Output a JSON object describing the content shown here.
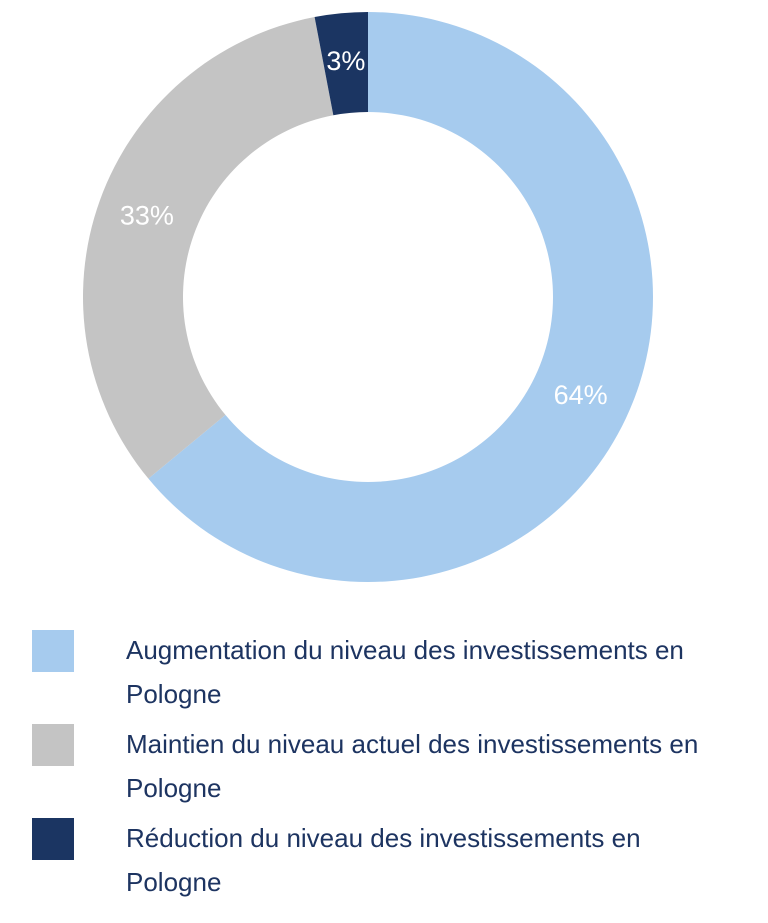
{
  "chart_data": {
    "type": "donut",
    "categories": [
      "Augmentation du niveau des investissements en Pologne",
      "Maintien du niveau actuel des investissements en Pologne",
      "Réduction du niveau des investissements en Pologne"
    ],
    "values": [
      64,
      33,
      3
    ],
    "value_labels": [
      "64%",
      "33%",
      "3%"
    ],
    "colors": [
      "#a6cbee",
      "#c4c4c4",
      "#1b3562"
    ]
  }
}
